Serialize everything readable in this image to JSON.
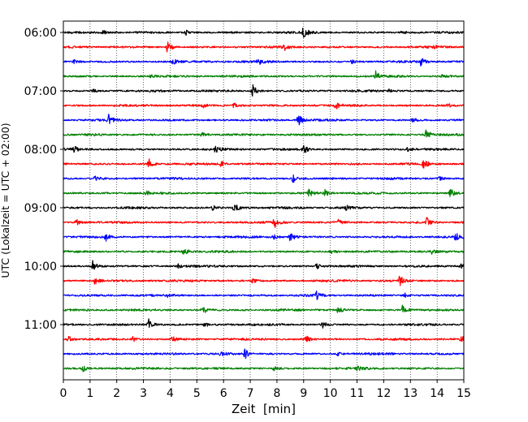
{
  "chart_data": {
    "type": "line",
    "xlabel": "Zeit  [min]",
    "ylabel": "UTC (Lokalzeit = UTC + 02:00)",
    "xlim": [
      0,
      15
    ],
    "x_ticks": [
      0,
      1,
      2,
      3,
      4,
      5,
      6,
      7,
      8,
      9,
      10,
      11,
      12,
      13,
      14,
      15
    ],
    "y_ticks": [
      "06:00",
      "07:00",
      "08:00",
      "09:00",
      "10:00",
      "11:00"
    ],
    "grid": "vertical dotted lines at each minute",
    "color_cycle": [
      "#000000",
      "#ff0000",
      "#0000ff",
      "#008000"
    ],
    "series": [
      {
        "start": "06:00",
        "color": "#000000",
        "events": [
          [
            1.5,
            0.35
          ],
          [
            4.6,
            0.45
          ],
          [
            9.0,
            1.0
          ],
          [
            12.7,
            0.25
          ]
        ]
      },
      {
        "start": "06:15",
        "color": "#ff0000",
        "events": [
          [
            3.9,
            1.0
          ],
          [
            8.3,
            0.4
          ],
          [
            13.9,
            0.35
          ]
        ]
      },
      {
        "start": "06:30",
        "color": "#0000ff",
        "events": [
          [
            0.4,
            0.45
          ],
          [
            4.1,
            0.9
          ],
          [
            7.3,
            0.55
          ],
          [
            10.8,
            0.3
          ],
          [
            13.4,
            0.75
          ]
        ]
      },
      {
        "start": "06:45",
        "color": "#008000",
        "events": [
          [
            3.3,
            0.3
          ],
          [
            11.7,
            0.8
          ],
          [
            14.2,
            0.3
          ]
        ]
      },
      {
        "start": "07:00",
        "color": "#000000",
        "events": [
          [
            1.1,
            0.3
          ],
          [
            7.1,
            1.0
          ],
          [
            12.2,
            0.3
          ]
        ]
      },
      {
        "start": "07:15",
        "color": "#ff0000",
        "events": [
          [
            5.2,
            0.4
          ],
          [
            6.4,
            0.55
          ],
          [
            10.2,
            0.6
          ],
          [
            14.4,
            0.3
          ]
        ]
      },
      {
        "start": "07:30",
        "color": "#0000ff",
        "events": [
          [
            1.7,
            0.85
          ],
          [
            8.8,
            1.0
          ],
          [
            13.1,
            0.3
          ]
        ]
      },
      {
        "start": "07:45",
        "color": "#008000",
        "events": [
          [
            5.2,
            0.4
          ],
          [
            13.6,
            0.9
          ]
        ]
      },
      {
        "start": "08:00",
        "color": "#000000",
        "events": [
          [
            0.4,
            0.45
          ],
          [
            5.7,
            0.55
          ],
          [
            9.0,
            0.9
          ],
          [
            12.9,
            0.3
          ]
        ]
      },
      {
        "start": "08:15",
        "color": "#ff0000",
        "events": [
          [
            3.2,
            0.9
          ],
          [
            5.9,
            0.5
          ],
          [
            13.5,
            0.85
          ]
        ]
      },
      {
        "start": "08:30",
        "color": "#0000ff",
        "events": [
          [
            1.2,
            0.55
          ],
          [
            8.6,
            0.7
          ],
          [
            14.1,
            0.3
          ]
        ]
      },
      {
        "start": "08:45",
        "color": "#008000",
        "events": [
          [
            3.1,
            0.3
          ],
          [
            9.2,
            0.6
          ],
          [
            9.8,
            0.55
          ],
          [
            14.5,
            0.75
          ]
        ]
      },
      {
        "start": "09:00",
        "color": "#000000",
        "events": [
          [
            5.6,
            0.45
          ],
          [
            6.4,
            1.0
          ],
          [
            10.6,
            0.35
          ]
        ]
      },
      {
        "start": "09:15",
        "color": "#ff0000",
        "events": [
          [
            0.5,
            0.55
          ],
          [
            7.9,
            0.95
          ],
          [
            10.3,
            0.5
          ],
          [
            13.6,
            0.85
          ]
        ]
      },
      {
        "start": "09:30",
        "color": "#0000ff",
        "events": [
          [
            1.6,
            0.6
          ],
          [
            7.9,
            0.5
          ],
          [
            8.5,
            0.8
          ],
          [
            14.7,
            0.8
          ]
        ]
      },
      {
        "start": "09:45",
        "color": "#008000",
        "events": [
          [
            4.5,
            0.85
          ],
          [
            10.0,
            0.4
          ],
          [
            13.8,
            0.3
          ]
        ]
      },
      {
        "start": "10:00",
        "color": "#000000",
        "events": [
          [
            1.1,
            0.95
          ],
          [
            4.3,
            0.3
          ],
          [
            9.5,
            0.55
          ],
          [
            14.9,
            0.35
          ]
        ]
      },
      {
        "start": "10:15",
        "color": "#ff0000",
        "events": [
          [
            1.2,
            0.8
          ],
          [
            7.1,
            0.35
          ],
          [
            12.6,
            0.95
          ]
        ]
      },
      {
        "start": "10:30",
        "color": "#0000ff",
        "events": [
          [
            3.9,
            0.45
          ],
          [
            9.5,
            0.75
          ],
          [
            12.8,
            0.3
          ]
        ]
      },
      {
        "start": "10:45",
        "color": "#008000",
        "events": [
          [
            5.2,
            0.85
          ],
          [
            10.3,
            0.6
          ],
          [
            12.7,
            0.75
          ]
        ]
      },
      {
        "start": "11:00",
        "color": "#000000",
        "events": [
          [
            3.2,
            1.0
          ],
          [
            5.3,
            0.35
          ],
          [
            9.7,
            0.65
          ]
        ]
      },
      {
        "start": "11:15",
        "color": "#ff0000",
        "events": [
          [
            0.2,
            0.45
          ],
          [
            2.6,
            0.4
          ],
          [
            4.1,
            0.45
          ],
          [
            9.1,
            0.55
          ],
          [
            14.9,
            0.55
          ]
        ]
      },
      {
        "start": "11:30",
        "color": "#0000ff",
        "events": [
          [
            5.9,
            0.45
          ],
          [
            6.8,
            0.85
          ],
          [
            10.3,
            0.3
          ]
        ]
      },
      {
        "start": "11:45",
        "color": "#008000",
        "events": [
          [
            0.7,
            0.65
          ],
          [
            7.9,
            0.35
          ],
          [
            11.0,
            0.3
          ]
        ]
      }
    ]
  }
}
